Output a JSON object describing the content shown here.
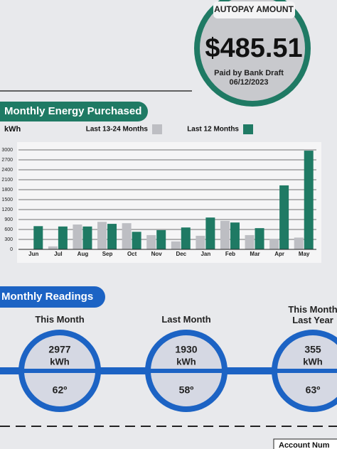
{
  "header": {
    "autopay_label": "AUTOPAY AMOUNT",
    "amount": "$485.51",
    "payment_method": "Paid by Bank Draft",
    "payment_date": "06/12/2023"
  },
  "chart_data": {
    "type": "bar",
    "title": "Monthly Energy Purchased",
    "y_label": "kWh",
    "categories": [
      "Jun",
      "Jul",
      "Aug",
      "Sep",
      "Oct",
      "Nov",
      "Dec",
      "Jan",
      "Feb",
      "Mar",
      "Apr",
      "May"
    ],
    "series": [
      {
        "name": "Last 13-24 Months",
        "color": "#bdbec3",
        "values": [
          null,
          90,
          750,
          830,
          790,
          430,
          240,
          410,
          860,
          430,
          320,
          355
        ]
      },
      {
        "name": "Last 12 Months",
        "color": "#1f7a64",
        "values": [
          700,
          690,
          690,
          770,
          530,
          580,
          660,
          960,
          810,
          640,
          1930,
          2977
        ]
      }
    ],
    "ylim": [
      0,
      3000
    ],
    "yticks": [
      0,
      300,
      600,
      900,
      1200,
      1500,
      1800,
      2100,
      2400,
      2700,
      3000
    ],
    "grid": true
  },
  "readings": {
    "title": "Monthly Readings",
    "items": [
      {
        "label": "This Month",
        "usage": "2977",
        "unit": "kWh",
        "temperature": "62º"
      },
      {
        "label": "Last Month",
        "usage": "1930",
        "unit": "kWh",
        "temperature": "58º"
      },
      {
        "label": "This Month Last Year",
        "usage": "355",
        "unit": "kWh",
        "temperature": "63º"
      }
    ]
  },
  "footer": {
    "account_label": "Account Num"
  }
}
